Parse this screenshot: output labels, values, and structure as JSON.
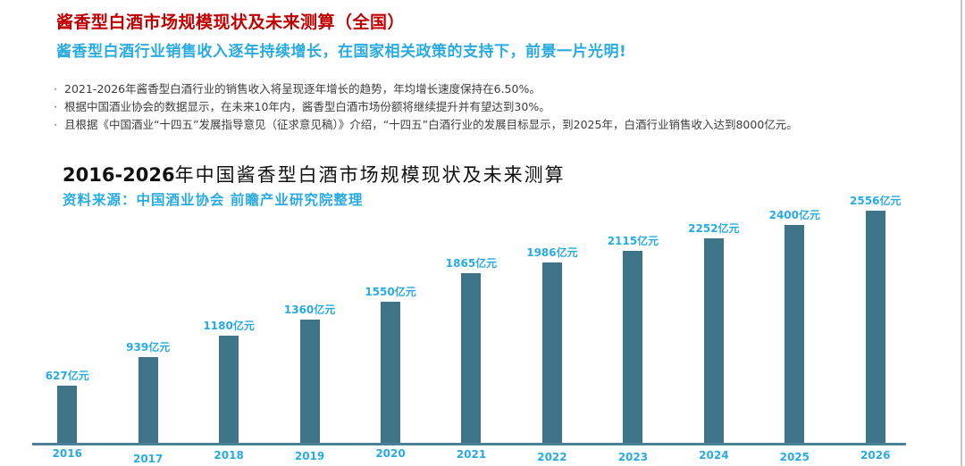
{
  "page": {
    "title": "酱香型白酒市场规模现状及未来测算（全国）",
    "subtitle": "酱香型白酒行业销售收入逐年持续增长，在国家相关政策的支持下，前景一片光明!",
    "bullet_marker": "·",
    "bullets": [
      "2021-2026年酱香型白酒行业的销售收入将呈现逐年增长的趋势，年均增长速度保持在6.50%。",
      "根据中国酒业协会的数据显示，在未来10年内，酱香型白酒市场份额将继续提升并有望达到30%。",
      "且根据《中国酒业“十四五”发展指导意见（征求意见稿）》介绍，“十四五”白酒行业的发展目标显示，到2025年，白酒行业销售收入达到8000亿元。"
    ]
  },
  "chart": {
    "title_prefix": "2016-2026",
    "title_rest": "年中国酱香型白酒市场规模现状及未来测算",
    "source": "资料来源：中国酒业协会 前瞻产业研究院整理"
  },
  "chart_data": {
    "type": "bar",
    "title": "2016-2026年中国酱香型白酒市场规模现状及未来测算",
    "categories": [
      "2016",
      "2017",
      "2018",
      "2019",
      "2020",
      "2021",
      "2022",
      "2023",
      "2024",
      "2025",
      "2026"
    ],
    "values": [
      627,
      939,
      1180,
      1360,
      1550,
      1865,
      1986,
      2115,
      2252,
      2400,
      2556
    ],
    "unit": "亿元",
    "data_labels": [
      "627亿元",
      "939亿元",
      "1180亿元",
      "1360亿元",
      "1550亿元",
      "1865亿元",
      "1986亿元",
      "2115亿元",
      "2252亿元",
      "2400亿元",
      "2556亿元"
    ],
    "xlabel": "",
    "ylabel": "",
    "ylim": [
      0,
      2600
    ],
    "grid": false,
    "y_axis_visible": false,
    "legend": "none",
    "label_position": "above-bar"
  },
  "colors": {
    "title": "#C00000",
    "accent": "#29ABE2",
    "body": "#3D3D3D",
    "bar": "#3E7488",
    "axis": "#4A8198",
    "divider": "#C6C6C6"
  }
}
